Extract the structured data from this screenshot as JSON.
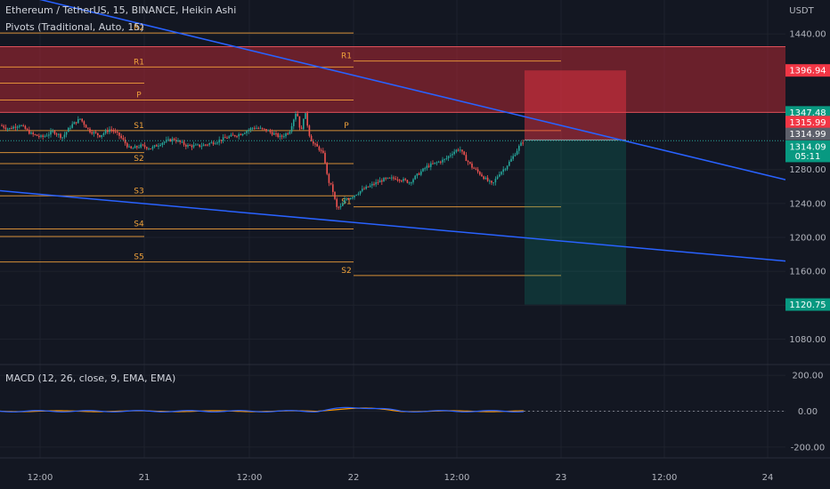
{
  "legend": {
    "symbol": "Ethereum / TetherUS, 15, BINANCE, Heikin Ashi",
    "pivots": "Pivots (Traditional, Auto, 15)",
    "macd": "MACD (12, 26, close, 9, EMA, EMA)"
  },
  "currency": "USDT",
  "chart_data": [
    {
      "type": "candlestick",
      "title": "Ethereum / TetherUS, 15, BINANCE, Heikin Ashi",
      "ylim": [
        1050,
        1480
      ],
      "y_ticks": [
        1080,
        1120,
        1160,
        1200,
        1240,
        1280,
        1440
      ],
      "x_ticks": [
        "12:00",
        "21",
        "12:00",
        "22",
        "12:00",
        "23",
        "12:00",
        "24"
      ],
      "grid": true,
      "price_path": [
        [
          1,
          1332
        ],
        [
          10,
          1328
        ],
        [
          22,
          1333
        ],
        [
          35,
          1322
        ],
        [
          47,
          1318
        ],
        [
          60,
          1325
        ],
        [
          70,
          1318
        ],
        [
          80,
          1332
        ],
        [
          90,
          1340
        ],
        [
          100,
          1326
        ],
        [
          112,
          1320
        ],
        [
          124,
          1328
        ],
        [
          134,
          1320
        ],
        [
          146,
          1304
        ],
        [
          158,
          1308
        ],
        [
          170,
          1305
        ],
        [
          182,
          1312
        ],
        [
          195,
          1316
        ],
        [
          210,
          1308
        ],
        [
          225,
          1308
        ],
        [
          240,
          1312
        ],
        [
          255,
          1318
        ],
        [
          270,
          1322
        ],
        [
          285,
          1330
        ],
        [
          300,
          1326
        ],
        [
          315,
          1318
        ],
        [
          325,
          1325
        ],
        [
          333,
          1350
        ],
        [
          338,
          1322
        ],
        [
          342,
          1350
        ],
        [
          348,
          1318
        ],
        [
          352,
          1310
        ],
        [
          358,
          1305
        ],
        [
          364,
          1296
        ],
        [
          368,
          1268
        ],
        [
          373,
          1258
        ],
        [
          378,
          1235
        ],
        [
          383,
          1236
        ],
        [
          388,
          1245
        ],
        [
          395,
          1248
        ],
        [
          405,
          1255
        ],
        [
          418,
          1262
        ],
        [
          430,
          1268
        ],
        [
          445,
          1270
        ],
        [
          460,
          1265
        ],
        [
          470,
          1275
        ],
        [
          480,
          1284
        ],
        [
          490,
          1288
        ],
        [
          500,
          1292
        ],
        [
          508,
          1300
        ],
        [
          516,
          1305
        ],
        [
          522,
          1294
        ],
        [
          530,
          1283
        ],
        [
          538,
          1276
        ],
        [
          546,
          1268
        ],
        [
          553,
          1262
        ],
        [
          560,
          1275
        ],
        [
          568,
          1283
        ],
        [
          576,
          1295
        ],
        [
          584,
          1309
        ],
        [
          588,
          1314
        ]
      ],
      "trendlines": [
        {
          "from": [
            "left",
            1492
          ],
          "to": [
            "right",
            1268
          ]
        },
        {
          "from": [
            "left",
            1255
          ],
          "to": [
            "right",
            1172
          ]
        }
      ],
      "position_tool": {
        "entry": 1314.99,
        "take_profit": 1120.75,
        "stop_loss": 1396.94
      },
      "supply_zone": [
        1347.48,
        1425
      ],
      "pivots": [
        {
          "label": "R2",
          "value": 1441
        },
        {
          "label": "R1",
          "value": 1401
        },
        {
          "label": "P",
          "value": 1362
        },
        {
          "label": "S1",
          "value": 1326
        },
        {
          "label": "S2",
          "value": 1287
        },
        {
          "label": "S3",
          "value": 1249
        },
        {
          "label": "S4",
          "value": 1210
        },
        {
          "label": "S5",
          "value": 1171
        },
        {
          "label": "R1",
          "value": 1408
        },
        {
          "label": "P",
          "value": 1326
        },
        {
          "label": "S1",
          "value": 1236
        },
        {
          "label": "S2",
          "value": 1155
        }
      ],
      "price_tags": [
        {
          "value": "1396.94",
          "kind": "red",
          "y": 1396.94
        },
        {
          "value": "1347.48",
          "kind": "green",
          "y": 1347.48
        },
        {
          "value": "1315.99",
          "kind": "red",
          "y": 1336
        },
        {
          "value": "1314.99",
          "kind": "gray",
          "y": 1322
        },
        {
          "value": "1314.09",
          "kind": "teal",
          "y": 1307
        },
        {
          "value": "05:11",
          "kind": "teal",
          "y": 1296
        },
        {
          "value": "1120.75",
          "kind": "green",
          "y": 1120.75
        }
      ]
    },
    {
      "type": "line",
      "title": "MACD (12, 26, close, 9, EMA, EMA)",
      "ylim": [
        -260,
        260
      ],
      "y_ticks": [
        200.0,
        0.0,
        -200.0
      ],
      "y_tick_labels": [
        "200.00",
        "0.00",
        "-200.00"
      ],
      "current_value_label": "0.00"
    }
  ],
  "colors": {
    "background": "#131722",
    "grid": "#1e222d",
    "up": "#26a69a",
    "down": "#ef5350",
    "pivot": "#f7a33b",
    "trend": "#2962ff",
    "supply_zone": "rgba(178,40,51,0.55)",
    "stop_zone": "rgba(242,54,69,0.45)",
    "target_zone": "rgba(8,153,129,0.22)"
  }
}
